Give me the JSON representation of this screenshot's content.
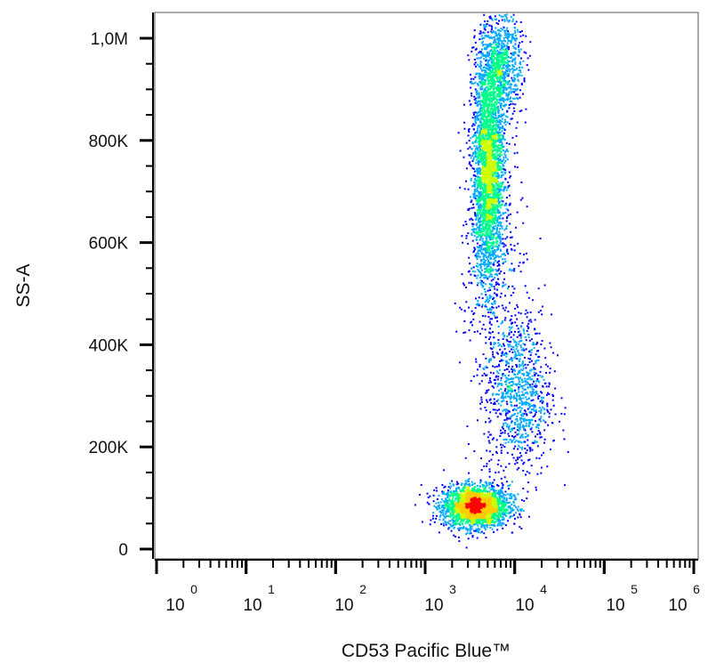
{
  "chart_data": {
    "type": "scatter",
    "style": "flow cytometry pseudocolor density dot plot",
    "xlabel": "CD53 Pacific Blue™",
    "ylabel": "SS-A",
    "x_scale": "log",
    "xlim": [
      1,
      1000000
    ],
    "ylim": [
      -50000,
      1050000
    ],
    "x_ticks": [
      {
        "base": "10",
        "exp": "0",
        "value": 1
      },
      {
        "base": "10",
        "exp": "1",
        "value": 10
      },
      {
        "base": "10",
        "exp": "2",
        "value": 100
      },
      {
        "base": "10",
        "exp": "3",
        "value": 1000
      },
      {
        "base": "10",
        "exp": "4",
        "value": 10000
      },
      {
        "base": "10",
        "exp": "5",
        "value": 100000
      },
      {
        "base": "10",
        "exp": "6",
        "value": 1000000
      }
    ],
    "y_ticks": [
      {
        "label": "0",
        "value": 0
      },
      {
        "label": "200K",
        "value": 200000
      },
      {
        "label": "400K",
        "value": 400000
      },
      {
        "label": "600K",
        "value": 600000
      },
      {
        "label": "800K",
        "value": 800000
      },
      {
        "label": "1,0M",
        "value": 1000000
      }
    ],
    "populations": [
      {
        "x_center": 3600,
        "x_spread_decades": 0.18,
        "y_center": 85000,
        "y_spread": 20000,
        "n": 2600
      },
      {
        "x_center": 5000,
        "x_spread_decades": 0.09,
        "y_center": 740000,
        "y_spread": 110000,
        "n": 3000
      },
      {
        "x_center": 6800,
        "x_spread_decades": 0.12,
        "y_center": 950000,
        "y_spread": 50000,
        "n": 900
      },
      {
        "x_center": 11000,
        "x_spread_decades": 0.18,
        "y_center": 300000,
        "y_spread": 80000,
        "n": 900
      },
      {
        "x_center": 6000,
        "x_spread_decades": 0.2,
        "y_center": 500000,
        "y_spread": 150000,
        "n": 350
      }
    ],
    "colormap": [
      "#0000ff",
      "#00aaff",
      "#00ff88",
      "#ccff00",
      "#ffcc00",
      "#ff0000"
    ],
    "grid": false
  }
}
